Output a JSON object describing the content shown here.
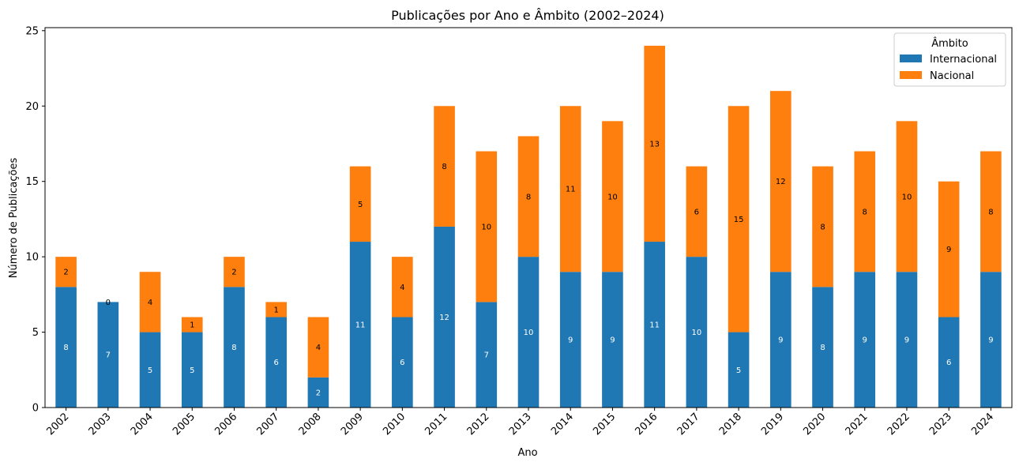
{
  "chart_data": {
    "type": "bar",
    "stacked": true,
    "title": "Publicações por Ano e Âmbito (2002–2024)",
    "xlabel": "Ano",
    "ylabel": "Número de Publicações",
    "ylim": [
      0,
      25.2
    ],
    "yticks": [
      0,
      5,
      10,
      15,
      20,
      25
    ],
    "categories": [
      "2002",
      "2003",
      "2004",
      "2005",
      "2006",
      "2007",
      "2008",
      "2009",
      "2010",
      "2011",
      "2012",
      "2013",
      "2014",
      "2015",
      "2016",
      "2017",
      "2018",
      "2019",
      "2020",
      "2021",
      "2022",
      "2023",
      "2024"
    ],
    "series": [
      {
        "name": "Internacional",
        "color": "#1f77b4",
        "label_color": "#ffffff",
        "values": [
          8,
          7,
          5,
          5,
          8,
          6,
          2,
          11,
          6,
          12,
          7,
          10,
          9,
          9,
          11,
          10,
          5,
          9,
          8,
          9,
          9,
          6,
          9
        ]
      },
      {
        "name": "Nacional",
        "color": "#ff7f0e",
        "label_color": "#000000",
        "values": [
          2,
          0,
          4,
          1,
          2,
          1,
          4,
          5,
          4,
          8,
          10,
          8,
          11,
          10,
          13,
          6,
          15,
          12,
          8,
          8,
          10,
          9,
          8
        ]
      }
    ],
    "legend": {
      "title": "Âmbito",
      "position": "top-right"
    },
    "grid": false
  }
}
